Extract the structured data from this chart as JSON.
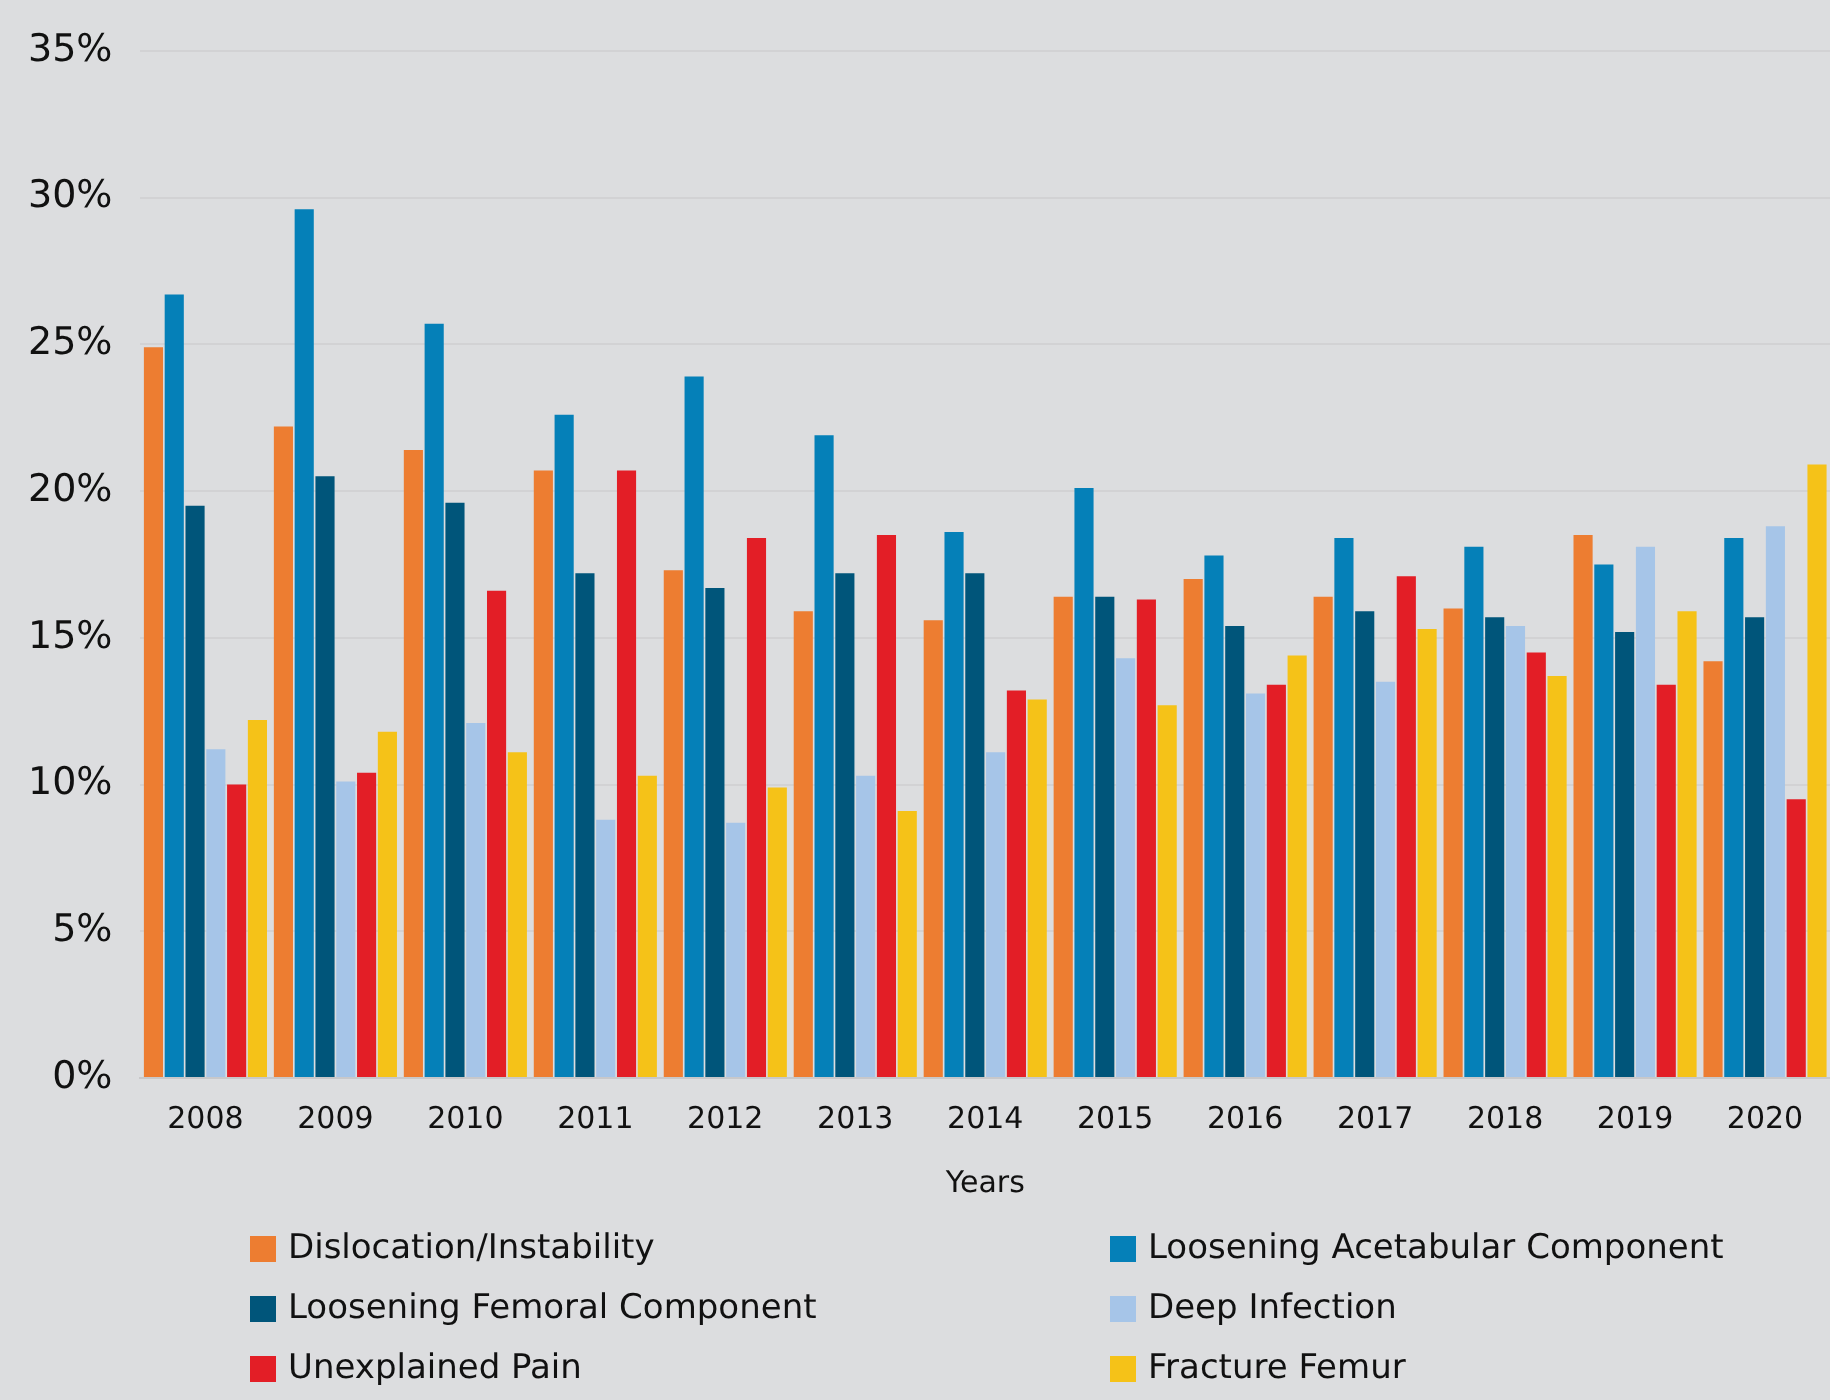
{
  "chart_data": {
    "type": "bar",
    "xlabel": "Years",
    "categories": [
      "2008",
      "2009",
      "2010",
      "2011",
      "2012",
      "2013",
      "2014",
      "2015",
      "2016",
      "2017",
      "2018",
      "2019",
      "2020"
    ],
    "series": [
      {
        "name": "Dislocation/Instability",
        "color": "#ed7d31",
        "values": [
          24.9,
          22.2,
          21.4,
          20.7,
          17.3,
          15.9,
          15.6,
          16.4,
          17.0,
          16.4,
          16.0,
          18.5,
          14.2
        ]
      },
      {
        "name": "Loosening Acetabular Component",
        "color": "#0580b8",
        "values": [
          26.7,
          29.6,
          25.7,
          22.6,
          23.9,
          21.9,
          18.6,
          20.1,
          17.8,
          18.4,
          18.1,
          17.5,
          18.4
        ]
      },
      {
        "name": "Loosening Femoral Component",
        "color": "#00557a",
        "values": [
          19.5,
          20.5,
          19.6,
          17.2,
          16.7,
          17.2,
          17.2,
          16.4,
          15.4,
          15.9,
          15.7,
          15.2,
          15.7
        ]
      },
      {
        "name": "Deep Infection",
        "color": "#a6c5e8",
        "values": [
          11.2,
          10.1,
          12.1,
          8.8,
          8.7,
          10.3,
          11.1,
          14.3,
          13.1,
          13.5,
          15.4,
          18.1,
          18.8
        ]
      },
      {
        "name": "Unexplained Pain",
        "color": "#e31e26",
        "values": [
          10.0,
          10.4,
          16.6,
          20.7,
          18.4,
          18.5,
          13.2,
          16.3,
          13.4,
          17.1,
          14.5,
          13.4,
          9.5
        ]
      },
      {
        "name": "Fracture Femur",
        "color": "#f5c218",
        "values": [
          12.2,
          11.8,
          11.1,
          10.3,
          9.9,
          9.1,
          12.9,
          12.7,
          14.4,
          15.3,
          13.7,
          15.9,
          20.9
        ]
      }
    ],
    "ylim": [
      0,
      35
    ],
    "yticks": [
      {
        "value": 0,
        "label": "0%"
      },
      {
        "value": 5,
        "label": "5%"
      },
      {
        "value": 10,
        "label": "10%"
      },
      {
        "value": 15,
        "label": "15%"
      },
      {
        "value": 20,
        "label": "20%"
      },
      {
        "value": 25,
        "label": "25%"
      },
      {
        "value": 30,
        "label": "30%"
      },
      {
        "value": 35,
        "label": "35%"
      }
    ],
    "grid": "y",
    "legend": "bottom"
  }
}
